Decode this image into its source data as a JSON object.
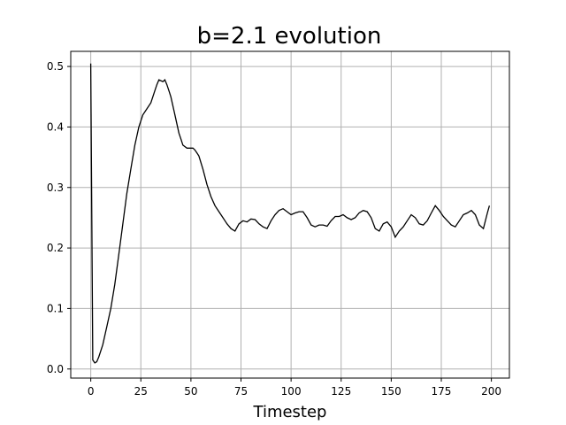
{
  "chart_data": {
    "type": "line",
    "title": "b=2.1 evolution",
    "xlabel": "Timestep",
    "ylabel": "",
    "xlim": [
      -10,
      209
    ],
    "ylim": [
      -0.015,
      0.525
    ],
    "xticks": [
      0,
      25,
      50,
      75,
      100,
      125,
      150,
      175,
      200
    ],
    "yticks": [
      0.0,
      0.1,
      0.2,
      0.3,
      0.4,
      0.5
    ],
    "xtick_labels": [
      "0",
      "25",
      "50",
      "75",
      "100",
      "125",
      "150",
      "175",
      "200"
    ],
    "ytick_labels": [
      "0.0",
      "0.1",
      "0.2",
      "0.3",
      "0.4",
      "0.5"
    ],
    "grid": true,
    "series": [
      {
        "color": "#000000",
        "x": [
          0,
          1,
          2,
          3,
          4,
          6,
          8,
          10,
          12,
          14,
          16,
          18,
          20,
          22,
          24,
          26,
          28,
          30,
          32,
          33,
          34,
          36,
          37,
          38,
          39,
          40,
          42,
          44,
          45,
          46,
          48,
          50,
          51,
          52,
          53,
          54,
          56,
          58,
          60,
          62,
          64,
          66,
          68,
          70,
          72,
          74,
          76,
          78,
          80,
          82,
          84,
          86,
          88,
          90,
          92,
          94,
          96,
          98,
          100,
          102,
          104,
          106,
          108,
          110,
          112,
          114,
          116,
          118,
          120,
          122,
          124,
          126,
          128,
          130,
          132,
          134,
          136,
          138,
          140,
          142,
          144,
          146,
          148,
          150,
          152,
          154,
          156,
          158,
          160,
          162,
          164,
          166,
          168,
          170,
          172,
          174,
          176,
          178,
          180,
          182,
          184,
          186,
          188,
          190,
          192,
          194,
          196,
          198,
          199
        ],
        "y": [
          0.505,
          0.015,
          0.01,
          0.012,
          0.02,
          0.04,
          0.07,
          0.1,
          0.14,
          0.19,
          0.24,
          0.29,
          0.33,
          0.37,
          0.4,
          0.42,
          0.43,
          0.44,
          0.46,
          0.47,
          0.478,
          0.475,
          0.478,
          0.47,
          0.46,
          0.45,
          0.42,
          0.39,
          0.38,
          0.37,
          0.365,
          0.365,
          0.365,
          0.362,
          0.357,
          0.352,
          0.33,
          0.305,
          0.285,
          0.27,
          0.26,
          0.25,
          0.24,
          0.232,
          0.228,
          0.24,
          0.245,
          0.243,
          0.248,
          0.247,
          0.24,
          0.235,
          0.232,
          0.245,
          0.255,
          0.262,
          0.265,
          0.26,
          0.255,
          0.258,
          0.26,
          0.26,
          0.25,
          0.238,
          0.235,
          0.238,
          0.238,
          0.236,
          0.245,
          0.252,
          0.252,
          0.255,
          0.25,
          0.247,
          0.25,
          0.258,
          0.262,
          0.26,
          0.25,
          0.232,
          0.228,
          0.24,
          0.243,
          0.235,
          0.218,
          0.228,
          0.235,
          0.245,
          0.255,
          0.25,
          0.24,
          0.238,
          0.245,
          0.258,
          0.27,
          0.262,
          0.252,
          0.245,
          0.238,
          0.235,
          0.245,
          0.255,
          0.258,
          0.262,
          0.255,
          0.238,
          0.232,
          0.258,
          0.27
        ]
      }
    ]
  }
}
